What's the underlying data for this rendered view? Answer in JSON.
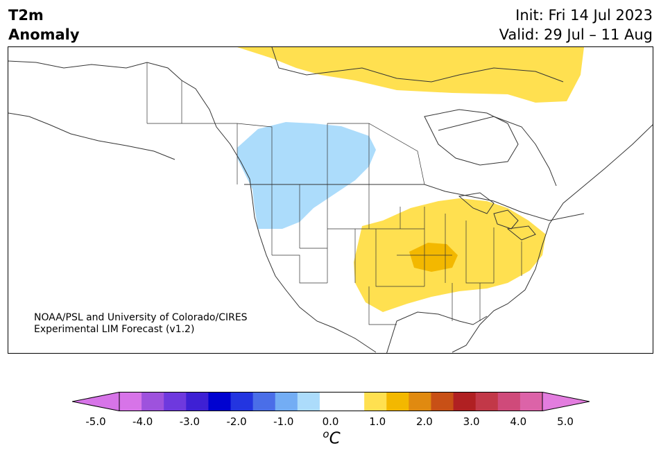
{
  "header": {
    "title_line1": "T2m",
    "title_line2": "Anomaly",
    "init": "Init: Fri 14 Jul 2023",
    "valid": "Valid: 29 Jul – 11 Aug"
  },
  "credit": {
    "line1": "NOAA/PSL and University of Colorado/CIRES",
    "line2": "Experimental LIM Forecast (v1.2)"
  },
  "colorbar": {
    "unit_sup": "o",
    "unit_letter": "C",
    "ticks": [
      "-5.0",
      "-4.0",
      "-3.0",
      "-2.0",
      "-1.0",
      "0.0",
      "1.0",
      "2.0",
      "3.0",
      "4.0",
      "5.0"
    ],
    "colors": [
      "#d774e8",
      "#9e52dd",
      "#6e39de",
      "#3e20d4",
      "#0002d0",
      "#2335e0",
      "#4a6ee8",
      "#73adf4",
      "#acdcfb",
      "#ffffff",
      "#ffffff",
      "#ffe050",
      "#f3b800",
      "#e08a10",
      "#c85016",
      "#b02022",
      "#c23848",
      "#cf4a7a",
      "#dc63a8"
    ],
    "min_color": "#d774e8",
    "max_color": "#e37ddf"
  },
  "map": {
    "anomaly_colors": {
      "cold": "#acdcfb",
      "warm1": "#ffe050",
      "warm2": "#f3b800"
    }
  }
}
